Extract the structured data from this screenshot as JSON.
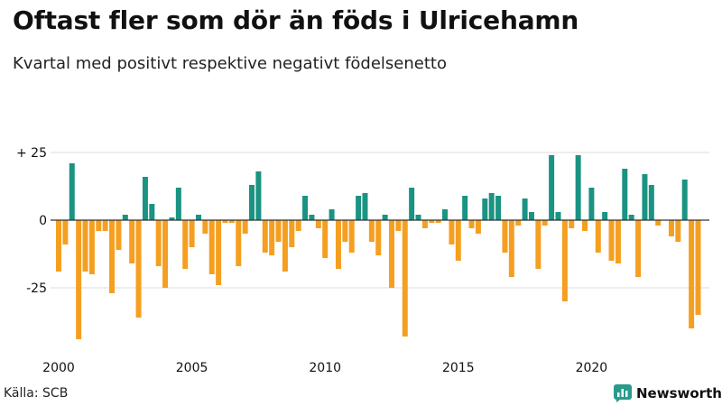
{
  "header": {
    "title": "Oftast fler som dör än föds i Ulricehamn",
    "subtitle": "Kvartal med positivt respektive negativt födelsenetto"
  },
  "footer": {
    "source": "Källa: SCB",
    "brand": "Newsworthy",
    "brand_color": "#2a9a8c"
  },
  "colors": {
    "positive": "#1a9383",
    "negative": "#f59f21",
    "gridline": "#dddddd",
    "zero_line": "#333333"
  },
  "chart_data": {
    "type": "bar",
    "title": "Oftast fler som dör än föds i Ulricehamn",
    "subtitle": "Kvartal med positivt respektive negativt födelsenetto",
    "xlabel": "",
    "ylabel": "",
    "ylim": [
      -44,
      25
    ],
    "yticks": [
      {
        "value": 25,
        "label": "+ 25"
      },
      {
        "value": 0,
        "label": "0"
      },
      {
        "value": -25,
        "label": "-25"
      }
    ],
    "xticks": [
      2000,
      2005,
      2010,
      2015,
      2020
    ],
    "start_year": 2000,
    "periods_per_year": 4,
    "grid": true,
    "values": [
      -19,
      -9,
      21,
      -44,
      -19,
      -20,
      -4,
      -4,
      -27,
      -11,
      2,
      -16,
      -36,
      16,
      6,
      -17,
      -25,
      1,
      12,
      -18,
      -10,
      2,
      -5,
      -20,
      -24,
      -1,
      -1,
      -17,
      -5,
      13,
      18,
      -12,
      -13,
      -8,
      -19,
      -10,
      -4,
      9,
      2,
      -3,
      -14,
      4,
      -18,
      -8,
      -12,
      9,
      10,
      -8,
      -13,
      2,
      -25,
      -4,
      -43,
      12,
      2,
      -3,
      -1,
      -1,
      4,
      -9,
      -15,
      9,
      -3,
      -5,
      8,
      10,
      9,
      -12,
      -21,
      -2,
      8,
      3,
      -18,
      -2,
      24,
      3,
      -30,
      -3,
      24,
      -4,
      12,
      -12,
      3,
      -15,
      -16,
      19,
      2,
      -21,
      17,
      13,
      -2,
      0,
      -6,
      -8,
      15,
      -40,
      -35
    ]
  }
}
